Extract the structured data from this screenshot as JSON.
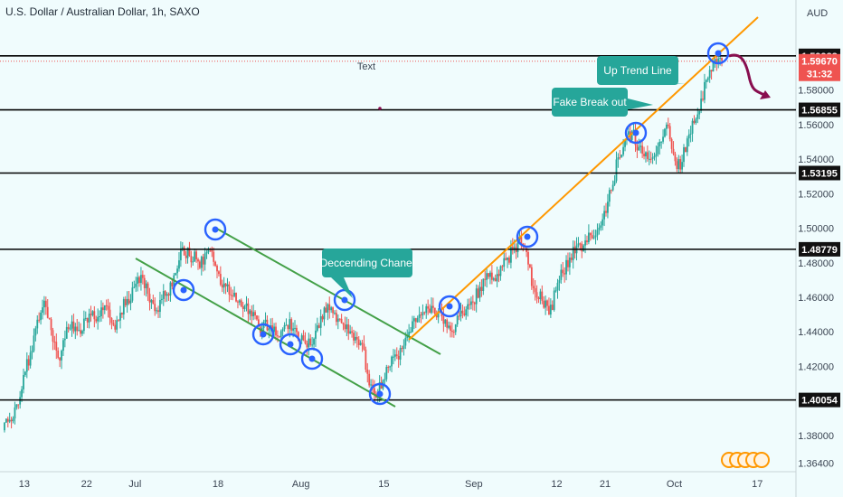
{
  "chart_data": {
    "type": "candlestick",
    "title": "U.S. Dollar / Australian Dollar, 1h, SAXO",
    "currency_label": "AUD",
    "ylim": [
      1.359,
      1.6175
    ],
    "y_ticks": [
      1.364,
      1.38,
      1.4,
      1.42,
      1.44,
      1.46,
      1.48,
      1.5,
      1.52,
      1.54,
      1.56,
      1.58
    ],
    "y_tick_labels": [
      "1.36400",
      "1.38000",
      "1.40000",
      "1.42000",
      "1.44000",
      "1.46000",
      "1.48000",
      "1.50000",
      "1.52000",
      "1.54000",
      "1.56000",
      "1.58000"
    ],
    "x_ticks": [
      {
        "label": "13",
        "i": 3
      },
      {
        "label": "22",
        "i": 12
      },
      {
        "label": "Jul",
        "i": 19
      },
      {
        "label": "18",
        "i": 31
      },
      {
        "label": "Aug",
        "i": 43
      },
      {
        "label": "15",
        "i": 55
      },
      {
        "label": "Sep",
        "i": 68
      },
      {
        "label": "12",
        "i": 80
      },
      {
        "label": "21",
        "i": 87
      },
      {
        "label": "Oct",
        "i": 97
      },
      {
        "label": "17",
        "i": 109
      }
    ],
    "horizontal_levels": [
      {
        "value": 1.59983,
        "label": "1.59983"
      },
      {
        "value": 1.56855,
        "label": "1.56855"
      },
      {
        "value": 1.53195,
        "label": "1.53195"
      },
      {
        "value": 1.48779,
        "label": "1.48779"
      },
      {
        "value": 1.40054,
        "label": "1.40054"
      }
    ],
    "current_price": {
      "value": 1.5967,
      "label": "1.59670",
      "countdown": "31:32"
    },
    "close_series": [
      1.383,
      1.389,
      1.398,
      1.415,
      1.428,
      1.447,
      1.458,
      1.441,
      1.425,
      1.436,
      1.446,
      1.441,
      1.448,
      1.452,
      1.449,
      1.455,
      1.444,
      1.451,
      1.459,
      1.466,
      1.473,
      1.462,
      1.452,
      1.459,
      1.461,
      1.474,
      1.489,
      1.484,
      1.482,
      1.479,
      1.488,
      1.475,
      1.468,
      1.461,
      1.457,
      1.455,
      1.449,
      1.443,
      1.447,
      1.44,
      1.437,
      1.444,
      1.442,
      1.435,
      1.431,
      1.436,
      1.449,
      1.456,
      1.451,
      1.445,
      1.439,
      1.437,
      1.433,
      1.409,
      1.402,
      1.412,
      1.42,
      1.426,
      1.432,
      1.44,
      1.448,
      1.451,
      1.455,
      1.452,
      1.447,
      1.44,
      1.449,
      1.453,
      1.457,
      1.466,
      1.474,
      1.471,
      1.478,
      1.483,
      1.489,
      1.491,
      1.479,
      1.463,
      1.458,
      1.45,
      1.464,
      1.474,
      1.483,
      1.49,
      1.49,
      1.496,
      1.499,
      1.51,
      1.522,
      1.541,
      1.551,
      1.556,
      1.547,
      1.544,
      1.541,
      1.55,
      1.56,
      1.543,
      1.534,
      1.552,
      1.561,
      1.575,
      1.587,
      1.598,
      1.597
    ],
    "drawings": {
      "descending_channel": {
        "upper": [
          [
            1.498,
            0
          ],
          [
            1.437,
            0
          ]
        ],
        "note": ""
      }
    },
    "annotations": [
      {
        "text": "Up Trend Line"
      },
      {
        "text": "Fake Break out"
      },
      {
        "text": "Deccending Chanel"
      },
      {
        "text": "Text"
      }
    ]
  }
}
